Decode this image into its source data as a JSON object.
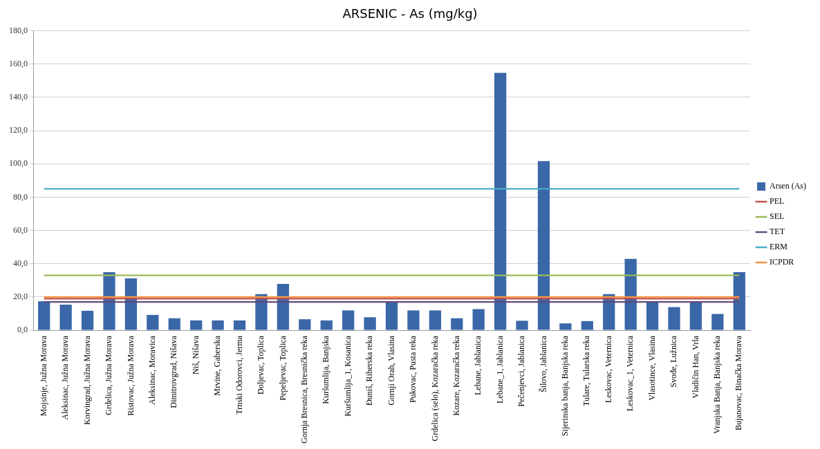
{
  "chart_data": {
    "type": "bar",
    "title": "ARSENIC - As (mg/kg)",
    "categories": [
      "Mojsinje, Južna Morava",
      "Aleksinac, Južna Morava",
      "Korvingrad, Južna Morava",
      "Grdelica, Južna Morava",
      "Ristovac, Južna Morava",
      "Aleksinac, Moravica",
      "Dimitrovgrad, Nišava",
      "Niš, Nišava",
      "Mrvine, Gaberska",
      "Trnski Odorovci, Jerma",
      "Doljevac, Toplica",
      "Pepeljevac, Toplica",
      "Gornja Bresnica, Bresnička reka",
      "Kuršumlija, Banjska",
      "Kuršumlija_1, Kosanica",
      "Đuniš, Riberska reka",
      "Gornji Orah, Vlasina",
      "Pukovac, Pusta reka",
      "Grdelica (selo), Kozaračka reka",
      "Kozare, Kozaračka reka",
      "Lebane, Jablanica",
      "Lebane_1, Jablanica",
      "Pečenjevci, Jablanica",
      "Šilovo, Jablanica",
      "Sijerinska banja, Banjska reka",
      "Tulare, Tularska reka",
      "Leskovac, Veternica",
      "Leskovac_1, Veternica",
      "Vlasotince, Vlasina",
      "Svođe, Lužnica",
      "Vladičin Han, Vrla",
      "Vranjska Banja, Banjska reka",
      "Bujanovac, Binačka Morava"
    ],
    "series": [
      {
        "name": "Arsen (As)",
        "color": "#3a67a8",
        "values": [
          17.4,
          15.4,
          11.7,
          34.9,
          31.2,
          9.2,
          7.2,
          5.9,
          5.9,
          5.9,
          21.7,
          27.9,
          6.6,
          5.9,
          11.9,
          7.8,
          16.8,
          11.9,
          11.9,
          7.2,
          12.7,
          154.7,
          5.7,
          101.7,
          4.1,
          5.5,
          21.7,
          42.9,
          16.8,
          13.9,
          16.8,
          9.8,
          34.9
        ]
      },
      {
        "name": "PEL",
        "type": "line",
        "color": "#c0504d",
        "values": [
          19,
          19,
          19,
          19,
          19,
          19,
          19,
          19,
          19,
          19,
          19,
          19,
          19,
          19,
          19,
          19,
          19,
          19,
          19,
          19,
          19,
          19,
          19,
          19,
          19,
          19,
          19,
          19,
          19,
          19,
          19,
          19,
          19
        ]
      },
      {
        "name": "SEL",
        "type": "line",
        "color": "#9bbb59",
        "values": [
          33,
          33,
          33,
          33,
          33,
          33,
          33,
          33,
          33,
          33,
          33,
          33,
          33,
          33,
          33,
          33,
          33,
          33,
          33,
          33,
          33,
          33,
          33,
          33,
          33,
          33,
          33,
          33,
          33,
          33,
          33,
          33,
          33
        ]
      },
      {
        "name": "TET",
        "type": "line",
        "color": "#604a7b",
        "values": [
          17,
          17,
          17,
          17,
          17,
          17,
          17,
          17,
          17,
          17,
          17,
          17,
          17,
          17,
          17,
          17,
          17,
          17,
          17,
          17,
          17,
          17,
          17,
          17,
          17,
          17,
          17,
          17,
          17,
          17,
          17,
          17,
          17
        ]
      },
      {
        "name": "ERM",
        "type": "line",
        "color": "#4bacc6",
        "values": [
          85,
          85,
          85,
          85,
          85,
          85,
          85,
          85,
          85,
          85,
          85,
          85,
          85,
          85,
          85,
          85,
          85,
          85,
          85,
          85,
          85,
          85,
          85,
          85,
          85,
          85,
          85,
          85,
          85,
          85,
          85,
          85,
          85
        ]
      },
      {
        "name": "ICPDR",
        "type": "line",
        "color": "#f79646",
        "values": [
          20,
          20,
          20,
          20,
          20,
          20,
          20,
          20,
          20,
          20,
          20,
          20,
          20,
          20,
          20,
          20,
          20,
          20,
          20,
          20,
          20,
          20,
          20,
          20,
          20,
          20,
          20,
          20,
          20,
          20,
          20,
          20,
          20
        ]
      }
    ],
    "ylim": [
      0,
      180
    ],
    "yticks": [
      {
        "value": 0,
        "label": "0,0"
      },
      {
        "value": 20,
        "label": "20,0"
      },
      {
        "value": 40,
        "label": "40,0"
      },
      {
        "value": 60,
        "label": "60,0"
      },
      {
        "value": 80,
        "label": "80,0"
      },
      {
        "value": 100,
        "label": "100,0"
      },
      {
        "value": 120,
        "label": "120,0"
      },
      {
        "value": 140,
        "label": "140,0"
      },
      {
        "value": 160,
        "label": "160,0"
      },
      {
        "value": 180,
        "label": "180,0"
      }
    ],
    "grid": "y",
    "legend": "right"
  }
}
